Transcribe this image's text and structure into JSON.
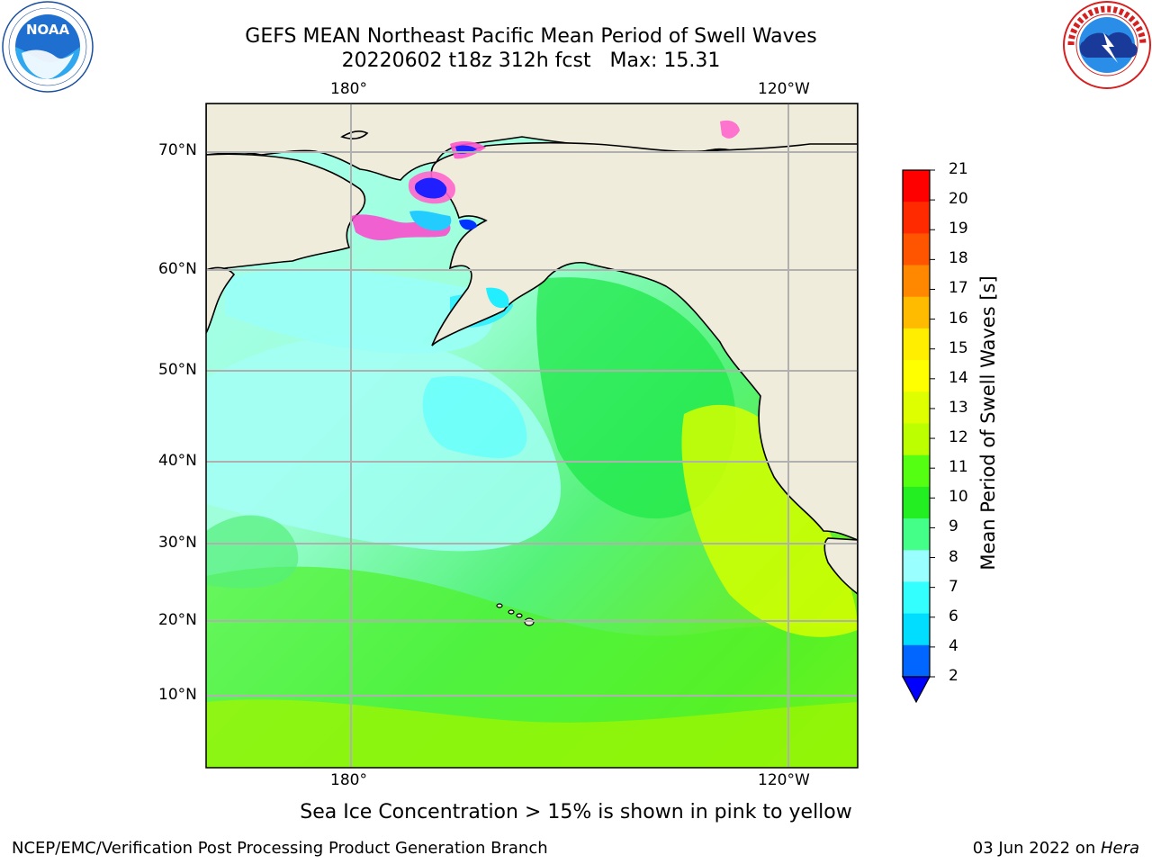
{
  "header": {
    "title_line1": "GEFS MEAN Northeast Pacific Mean Period of Swell Waves",
    "title_line2": "20220602 t18z 312h fcst   Max: 15.31"
  },
  "logos": {
    "left": {
      "name": "noaa-logo",
      "text": "NOAA",
      "ring_text": "NATIONAL OCEANIC AND ATMOSPHERIC ADMINISTRATION · U.S. DEPARTMENT OF COMMERCE"
    },
    "right": {
      "name": "nws-logo",
      "ring_text": "NATIONAL WEATHER SERVICE"
    }
  },
  "map": {
    "top_lon_labels": [
      "180°",
      "120°W"
    ],
    "bottom_lon_labels": [
      "180°",
      "120°W"
    ],
    "lat_labels": [
      "70°N",
      "60°N",
      "50°N",
      "40°N",
      "30°N",
      "20°N",
      "10°N"
    ],
    "colors": {
      "land": "#efecdc",
      "grid": "#b0b0b0",
      "coast": "#000000"
    }
  },
  "colorbar": {
    "label": "Mean Period of Swell Waves [s]",
    "ticks": [
      "2",
      "4",
      "6",
      "7",
      "8",
      "9",
      "10",
      "11",
      "12",
      "13",
      "14",
      "15",
      "16",
      "17",
      "18",
      "19",
      "20",
      "21"
    ],
    "colors": [
      "#0066ff",
      "#00ddff",
      "#33ffff",
      "#99ffff",
      "#44ff88",
      "#22ee22",
      "#55ff11",
      "#bbff00",
      "#ddff00",
      "#ffff00",
      "#ffee00",
      "#ffbb00",
      "#ff8800",
      "#ff5500",
      "#ff2a00",
      "#ff0000"
    ],
    "extend_color": "#0000ff"
  },
  "footnote": "Sea Ice Concentration > 15% is shown in pink to yellow",
  "footer": {
    "left": "NCEP/EMC/Verification Post Processing Product Generation Branch",
    "right_prefix": "03 Jun 2022 on ",
    "right_italic": "Hera"
  }
}
